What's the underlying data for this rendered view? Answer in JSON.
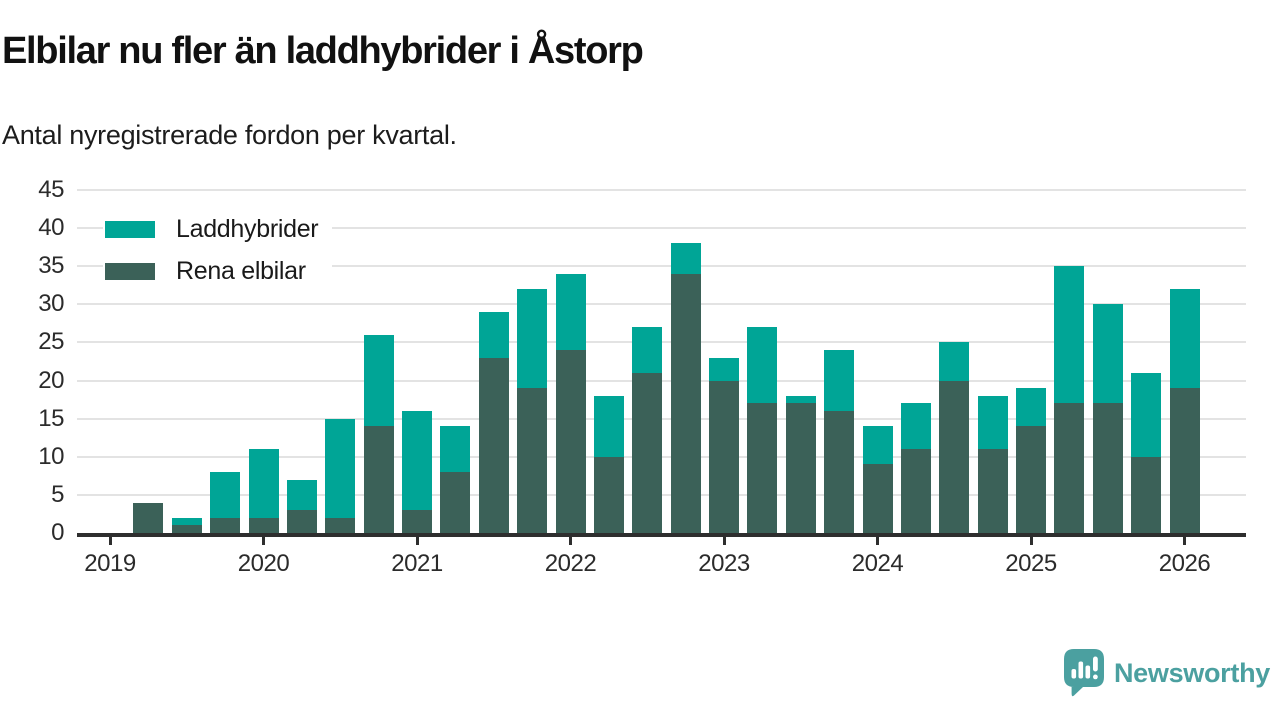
{
  "header": {
    "title": "Elbilar nu fler än laddhybrider i Åstorp",
    "subtitle": "Antal nyregistrerade fordon per kvartal."
  },
  "footer": {
    "brand": "Newsworthy",
    "brand_color": "#4ba0a0",
    "logo_icon": "speech-bubble-bar-chart-icon"
  },
  "colors": {
    "laddhybrider": "#00a596",
    "rena_elbilar": "#3b6158",
    "axis": "#2e2e2e",
    "gridline": "#e3e3e3"
  },
  "chart_data": {
    "type": "bar",
    "stacked": true,
    "title": "Elbilar nu fler än laddhybrider i Åstorp",
    "subtitle": "Antal nyregistrerade fordon per kvartal.",
    "x": [
      "2019 Q2",
      "2019 Q3",
      "2019 Q4",
      "2020 Q1",
      "2020 Q2",
      "2020 Q3",
      "2020 Q4",
      "2021 Q1",
      "2021 Q2",
      "2021 Q3",
      "2021 Q4",
      "2022 Q1",
      "2022 Q2",
      "2022 Q3",
      "2022 Q4",
      "2023 Q1",
      "2023 Q2",
      "2023 Q3",
      "2023 Q4",
      "2024 Q1",
      "2024 Q2",
      "2024 Q3",
      "2024 Q4",
      "2025 Q1",
      "2025 Q2",
      "2025 Q3",
      "2025 Q4",
      "2026 Q1"
    ],
    "series": [
      {
        "name": "Laddhybrider",
        "color": "#00a596",
        "values": [
          0,
          1,
          6,
          9,
          4,
          13,
          12,
          13,
          6,
          6,
          13,
          10,
          8,
          6,
          4,
          3,
          10,
          1,
          8,
          5,
          6,
          5,
          7,
          5,
          18,
          13,
          11,
          13
        ]
      },
      {
        "name": "Rena elbilar",
        "color": "#3b6158",
        "values": [
          4,
          1,
          2,
          2,
          3,
          2,
          14,
          3,
          8,
          23,
          19,
          24,
          10,
          21,
          34,
          20,
          17,
          17,
          16,
          9,
          11,
          20,
          11,
          14,
          17,
          17,
          10,
          19
        ]
      }
    ],
    "totals": [
      4,
      2,
      8,
      11,
      7,
      15,
      26,
      16,
      14,
      29,
      32,
      34,
      18,
      27,
      38,
      23,
      27,
      18,
      24,
      14,
      17,
      25,
      18,
      19,
      35,
      30,
      21,
      32
    ],
    "stack_order_bottom_to_top": [
      "Rena elbilar",
      "Laddhybrider"
    ],
    "ylim": [
      0,
      45
    ],
    "yticks": [
      0,
      5,
      10,
      15,
      20,
      25,
      30,
      35,
      40,
      45
    ],
    "xticks": [
      "2019",
      "2020",
      "2021",
      "2022",
      "2023",
      "2024",
      "2025",
      "2026"
    ],
    "grid": "horizontal",
    "legend_position": "top-left"
  }
}
